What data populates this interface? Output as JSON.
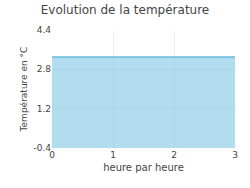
{
  "chart_data": {
    "type": "area",
    "title": "Evolution de la température",
    "xlabel": "heure par heure",
    "ylabel": "Température en °C",
    "x": [
      0,
      3
    ],
    "values": [
      3.3,
      3.3
    ],
    "color": "#66bbdd",
    "xlim": [
      0,
      3
    ],
    "ylim": [
      -0.4,
      4.4
    ],
    "xticks": [
      0,
      1,
      2,
      3
    ],
    "yticks": [
      -0.4,
      1.2,
      2.8,
      4.4
    ],
    "grid": true
  }
}
